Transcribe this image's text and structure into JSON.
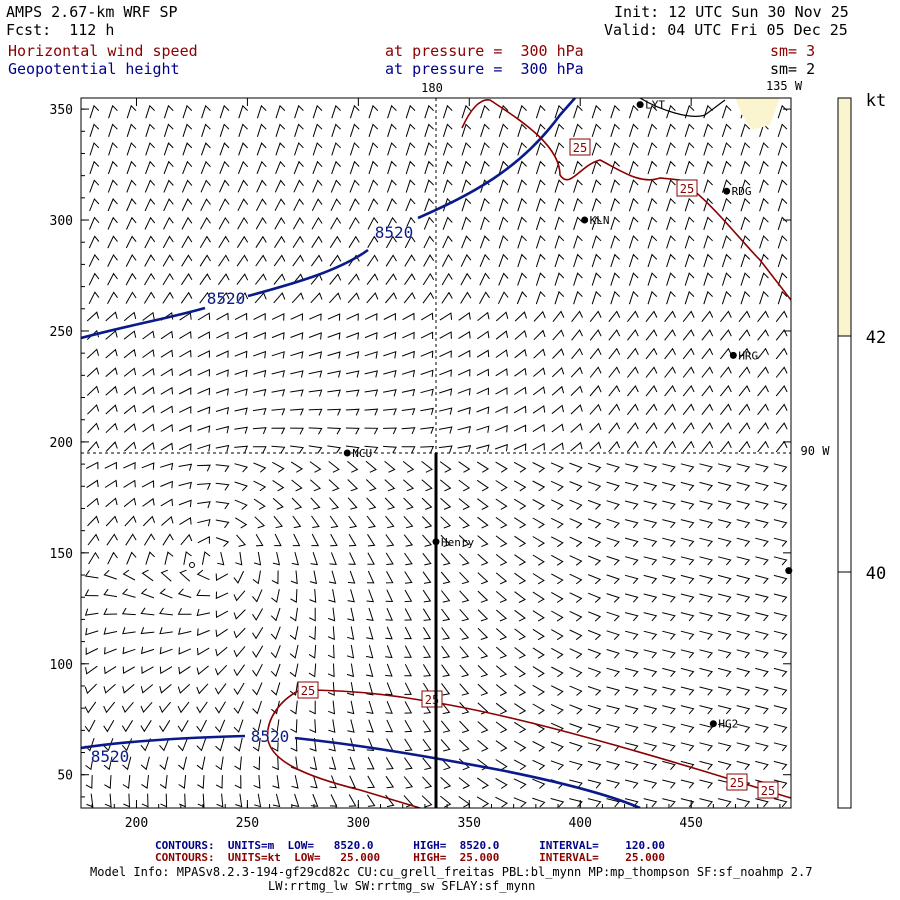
{
  "header": {
    "model": "AMPS 2.67-km WRF SP",
    "forecast": "Fcst:  112 h",
    "init": "Init: 12 UTC Sun 30 Nov 25",
    "valid": "Valid: 04 UTC Fri 05 Dec 25",
    "field1": "Horizontal wind speed",
    "field2": "Geopotential height",
    "level1": "at pressure =  300 hPa",
    "level2": "at pressure =  300 hPa",
    "sm1": "sm= 3",
    "sm2": "sm= 2"
  },
  "colors": {
    "height_contour": "#0b1a8a",
    "speed_contour": "#8b0000",
    "shade_42": "#fbf5cf",
    "shade_40": "#ffffff"
  },
  "chart_data": {
    "type": "contour_map",
    "xlim": [
      175,
      495
    ],
    "ylim": [
      35,
      355
    ],
    "xticks": [
      200,
      250,
      300,
      350,
      400,
      450
    ],
    "yticks": [
      50,
      100,
      150,
      200,
      250,
      300,
      350
    ],
    "meridian_labels": [
      "180",
      "135 W",
      "90 W"
    ],
    "gridline_x": 335,
    "gridline_y": 195,
    "height_contour_label": "8520",
    "speed_contour_label": "25",
    "colorbar": {
      "unit": "kt",
      "levels": [
        40,
        42
      ]
    },
    "stations": [
      {
        "name": "LYT",
        "x": 427,
        "y": 352
      },
      {
        "name": "RDG",
        "x": 466,
        "y": 313
      },
      {
        "name": "KLN",
        "x": 402,
        "y": 300
      },
      {
        "name": "HRG",
        "x": 469,
        "y": 239
      },
      {
        "name": "NCU",
        "x": 295,
        "y": 195
      },
      {
        "name": "Henry",
        "x": 335,
        "y": 155
      },
      {
        "name": "HG2",
        "x": 460,
        "y": 73
      },
      {
        "name": "",
        "x": 494,
        "y": 142
      }
    ]
  },
  "footer": {
    "contours1": "CONTOURS:  UNITS=m  LOW=   8520.0      HIGH=  8520.0      INTERVAL=    120.00",
    "contours2": "CONTOURS:  UNITS=kt  LOW=   25.000     HIGH=  25.000      INTERVAL=    25.000",
    "model_info": "Model Info: MPASv8.2.3-194-gf29cd82c CU:cu_grell_freitas PBL:bl_mynn MP:mp_thompson SF:sf_noahmp 2.7",
    "model_info2": "LW:rrtmg_lw SW:rrtmg_sw SFLAY:sf_mynn"
  }
}
